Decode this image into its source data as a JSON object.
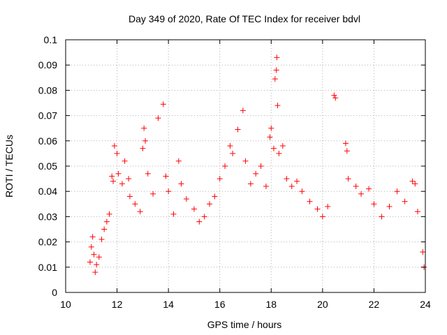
{
  "chart_data": {
    "type": "scatter",
    "title": "Day 349 of 2020, Rate Of TEC Index for receiver bdvl",
    "xlabel": "GPS time / hours",
    "ylabel": "ROTI / TECUs",
    "xlim": [
      10,
      24
    ],
    "ylim": [
      0,
      0.1
    ],
    "x_ticks": [
      "10",
      "12",
      "14",
      "16",
      "18",
      "20",
      "22",
      "24"
    ],
    "y_ticks": [
      "0",
      "0.01",
      "0.02",
      "0.03",
      "0.04",
      "0.05",
      "0.06",
      "0.07",
      "0.08",
      "0.09",
      "0.1"
    ],
    "grid": true,
    "marker": "+",
    "color": "#ff0000",
    "series": [
      {
        "points": [
          [
            10.95,
            0.012
          ],
          [
            11.0,
            0.018
          ],
          [
            11.05,
            0.022
          ],
          [
            11.1,
            0.015
          ],
          [
            11.15,
            0.008
          ],
          [
            11.2,
            0.011
          ],
          [
            11.3,
            0.014
          ],
          [
            11.4,
            0.021
          ],
          [
            11.5,
            0.025
          ],
          [
            11.6,
            0.028
          ],
          [
            11.7,
            0.031
          ],
          [
            11.8,
            0.046
          ],
          [
            11.85,
            0.044
          ],
          [
            11.9,
            0.058
          ],
          [
            12.0,
            0.055
          ],
          [
            12.05,
            0.047
          ],
          [
            12.2,
            0.043
          ],
          [
            12.3,
            0.052
          ],
          [
            12.45,
            0.045
          ],
          [
            12.5,
            0.038
          ],
          [
            12.7,
            0.035
          ],
          [
            12.9,
            0.032
          ],
          [
            13.0,
            0.057
          ],
          [
            13.05,
            0.065
          ],
          [
            13.1,
            0.06
          ],
          [
            13.2,
            0.047
          ],
          [
            13.4,
            0.039
          ],
          [
            13.6,
            0.069
          ],
          [
            13.8,
            0.0745
          ],
          [
            13.9,
            0.046
          ],
          [
            14.0,
            0.04
          ],
          [
            14.2,
            0.031
          ],
          [
            14.4,
            0.052
          ],
          [
            14.5,
            0.043
          ],
          [
            14.7,
            0.037
          ],
          [
            15.0,
            0.033
          ],
          [
            15.2,
            0.028
          ],
          [
            15.4,
            0.03
          ],
          [
            15.6,
            0.035
          ],
          [
            15.8,
            0.038
          ],
          [
            16.0,
            0.045
          ],
          [
            16.2,
            0.05
          ],
          [
            16.4,
            0.058
          ],
          [
            16.5,
            0.055
          ],
          [
            16.7,
            0.0645
          ],
          [
            16.9,
            0.072
          ],
          [
            17.0,
            0.052
          ],
          [
            17.2,
            0.043
          ],
          [
            17.4,
            0.047
          ],
          [
            17.6,
            0.05
          ],
          [
            17.8,
            0.042
          ],
          [
            17.95,
            0.0615
          ],
          [
            18.0,
            0.065
          ],
          [
            18.1,
            0.057
          ],
          [
            18.15,
            0.0845
          ],
          [
            18.2,
            0.088
          ],
          [
            18.22,
            0.093
          ],
          [
            18.25,
            0.074
          ],
          [
            18.3,
            0.055
          ],
          [
            18.45,
            0.058
          ],
          [
            18.6,
            0.045
          ],
          [
            18.8,
            0.042
          ],
          [
            19.0,
            0.044
          ],
          [
            19.2,
            0.04
          ],
          [
            19.5,
            0.036
          ],
          [
            19.8,
            0.033
          ],
          [
            20.0,
            0.03
          ],
          [
            20.2,
            0.034
          ],
          [
            20.45,
            0.078
          ],
          [
            20.5,
            0.077
          ],
          [
            20.9,
            0.059
          ],
          [
            20.95,
            0.056
          ],
          [
            21.0,
            0.045
          ],
          [
            21.3,
            0.042
          ],
          [
            21.5,
            0.039
          ],
          [
            21.8,
            0.041
          ],
          [
            22.0,
            0.035
          ],
          [
            22.3,
            0.03
          ],
          [
            22.6,
            0.034
          ],
          [
            22.9,
            0.04
          ],
          [
            23.2,
            0.036
          ],
          [
            23.5,
            0.044
          ],
          [
            23.6,
            0.043
          ],
          [
            23.7,
            0.032
          ],
          [
            23.9,
            0.016
          ],
          [
            23.95,
            0.01
          ]
        ]
      }
    ]
  }
}
